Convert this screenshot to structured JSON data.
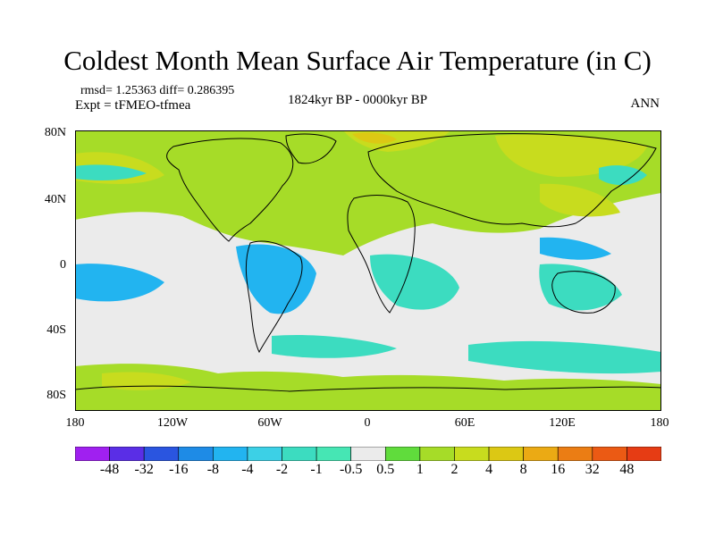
{
  "title": "Coldest Month Mean Surface Air Temperature (in C)",
  "stats": {
    "rmsd_line": "rmsd= 1.25363 diff= 0.286395",
    "expt_line": "Expt = tFMEO-tfmea"
  },
  "subtitle": "1824kyr BP - 0000kyr BP",
  "season": "ANN",
  "lat_labels": [
    "80N",
    "40N",
    "0",
    "40S",
    "80S"
  ],
  "lon_labels": [
    "180",
    "120W",
    "60W",
    "0",
    "60E",
    "120E",
    "180"
  ],
  "colorbar": {
    "labels": [
      "-48",
      "-32",
      "-16",
      "-8",
      "-4",
      "-2",
      "-1",
      "-0.5",
      "0.5",
      "1",
      "2",
      "4",
      "8",
      "16",
      "32",
      "48"
    ],
    "colors": [
      "#a020f0",
      "#5a2ee6",
      "#2a55e0",
      "#1e8be6",
      "#22b4f0",
      "#3cd0e6",
      "#3cdcc0",
      "#46e6b4",
      "#ebebeb",
      "#60dc3c",
      "#a6dc28",
      "#c8dc1e",
      "#dcc814",
      "#ebaa14",
      "#eb7d14",
      "#eb5a14",
      "#e63c14"
    ]
  },
  "map_colors": {
    "neutral": "#ebebeb",
    "cool": "#3cdcc0",
    "cold": "#22b4f0",
    "warm": "#a6dc28",
    "warmer": "#c8dc1e",
    "hot": "#dcc814",
    "coast": "#000000"
  }
}
